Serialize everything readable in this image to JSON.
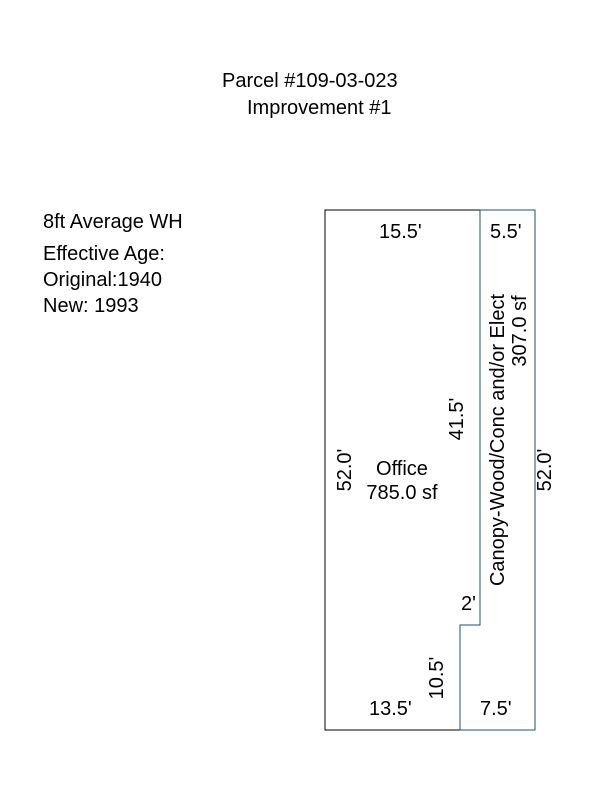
{
  "header": {
    "parcel": "Parcel #109-03-023",
    "improvement": "Improvement #1"
  },
  "notes": {
    "wall_height": "8ft Average WH",
    "effective_age_label": "Effective Age:",
    "original": "Original:1940",
    "new": "New: 1993"
  },
  "office": {
    "name": "Office",
    "area": "785.0 sf",
    "top_dim": "15.5'",
    "left_dim": "52.0'",
    "inner_dim": "41.5'",
    "step_dim": "10.5'",
    "bottom_dim": "13.5'"
  },
  "canopy": {
    "name": "Canopy-Wood/Conc and/or Elect",
    "area": "307.0 sf",
    "top_dim": "5.5'",
    "right_dim": "52.0'",
    "step_dim": "2'",
    "bottom_dim": "7.5'"
  },
  "colors": {
    "office_outline": "#000000",
    "canopy_outline": "#1f4e79"
  }
}
